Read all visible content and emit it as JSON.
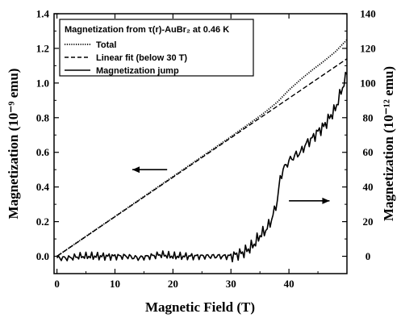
{
  "chart_data": {
    "type": "line",
    "title": "",
    "xlabel": "Magnetic Field (T)",
    "ylabel_left": "Magnetization (10⁻⁹ emu)",
    "ylabel_right": "Magnetization (10⁻¹² emu)",
    "xlim": [
      -0.5,
      50
    ],
    "ylim_left": [
      -0.1,
      1.4
    ],
    "ylim_right": [
      -10,
      140
    ],
    "x_ticks": [
      "0",
      "10",
      "20",
      "30",
      "40"
    ],
    "y_left_ticks": [
      "0.0",
      "0.2",
      "0.4",
      "0.6",
      "0.8",
      "1.0",
      "1.2",
      "1.4"
    ],
    "y_right_ticks": [
      "0",
      "20",
      "40",
      "60",
      "80",
      "100",
      "120",
      "140"
    ],
    "legend": {
      "header": "Magnetization from τ(r)-AuBr₂ at 0.46 K",
      "placement": "top-left"
    },
    "series": [
      {
        "name": "Total",
        "axis": "left",
        "style": "dotted",
        "x": [
          0,
          5,
          10,
          15,
          20,
          25,
          30,
          35,
          36,
          38,
          40,
          42,
          44,
          46,
          48,
          50
        ],
        "values": [
          0.0,
          0.115,
          0.23,
          0.345,
          0.46,
          0.575,
          0.69,
          0.81,
          0.835,
          0.89,
          0.96,
          1.02,
          1.075,
          1.125,
          1.18,
          1.25
        ]
      },
      {
        "name": "Linear fit (below 30 T)",
        "axis": "left",
        "style": "dashed",
        "x": [
          0,
          50
        ],
        "values": [
          0.0,
          1.14
        ]
      },
      {
        "name": "Magnetization jump",
        "axis": "right",
        "style": "solid",
        "x": [
          0,
          2,
          4,
          6,
          8,
          10,
          12,
          14,
          16,
          18,
          20,
          22,
          24,
          26,
          28,
          30,
          31,
          32,
          33,
          34,
          35,
          36,
          37,
          38,
          38.5,
          39,
          40,
          41,
          42,
          43,
          44,
          45,
          46,
          47,
          48,
          49,
          50
        ],
        "values": [
          -1,
          -1,
          0,
          0,
          0,
          0,
          0,
          -1,
          0,
          1,
          0,
          0,
          0,
          0,
          0,
          0,
          1,
          2,
          4,
          7,
          12,
          15,
          21,
          32,
          45,
          50,
          55,
          58,
          60,
          65,
          68,
          72,
          75,
          80,
          85,
          95,
          105
        ]
      }
    ],
    "annotations": [
      {
        "type": "arrow",
        "direction": "left",
        "x_from": 19,
        "x_to": 13,
        "y_axis": "left",
        "y": 0.5
      },
      {
        "type": "arrow",
        "direction": "right",
        "x_from": 40,
        "x_to": 47,
        "y_axis": "right",
        "y": 32
      }
    ],
    "grid": false
  }
}
